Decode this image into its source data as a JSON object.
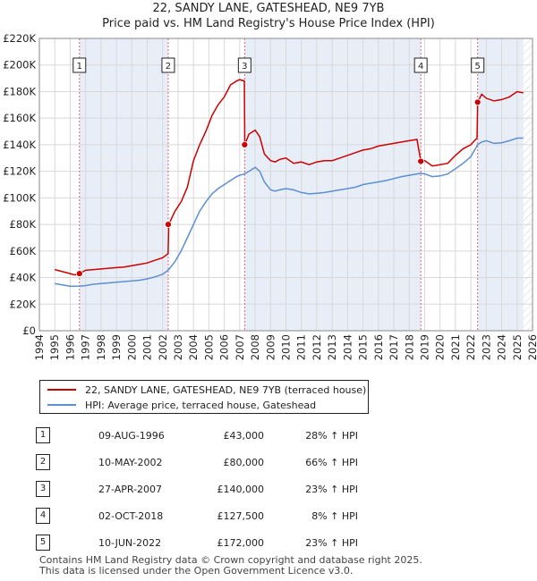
{
  "title_line1": "22, SANDY LANE, GATESHEAD, NE9 7YB",
  "title_line2": "Price paid vs. HM Land Registry's House Price Index (HPI)",
  "colors": {
    "property": "#cc0000",
    "hpi": "#5b8fd0",
    "shade": "#e8eef8",
    "marker_line": "#e06070"
  },
  "chart_data": {
    "type": "line",
    "title": "Price paid vs. HM Land Registry's House Price Index (HPI)",
    "xlim": [
      1994,
      2026
    ],
    "ylim": [
      0,
      220000
    ],
    "y_ticks": [
      0,
      20000,
      40000,
      60000,
      80000,
      100000,
      120000,
      140000,
      160000,
      180000,
      200000,
      220000
    ],
    "y_tick_labels": [
      "£0",
      "£20K",
      "£40K",
      "£60K",
      "£80K",
      "£100K",
      "£120K",
      "£140K",
      "£160K",
      "£180K",
      "£200K",
      "£220K"
    ],
    "x_ticks": [
      1994,
      1995,
      1996,
      1997,
      1998,
      1999,
      2000,
      2001,
      2002,
      2003,
      2004,
      2005,
      2006,
      2007,
      2008,
      2009,
      2010,
      2011,
      2012,
      2013,
      2014,
      2015,
      2016,
      2017,
      2018,
      2019,
      2020,
      2021,
      2022,
      2023,
      2024,
      2025,
      2026
    ],
    "x_tick_labels": [
      "1994",
      "1995",
      "1996",
      "1997",
      "1998",
      "1999",
      "2000",
      "2001",
      "2002",
      "2003",
      "2004",
      "2005",
      "2006",
      "2007",
      "2008",
      "2009",
      "2010",
      "2011",
      "2012",
      "2013",
      "2014",
      "2015",
      "2016",
      "2017",
      "2018",
      "2019",
      "2020",
      "2021",
      "2022",
      "2023",
      "2024",
      "2025",
      "2026"
    ],
    "series": [
      {
        "name": "22, SANDY LANE, GATESHEAD, NE9 7YB (terraced house)",
        "x": [
          1995.0,
          1995.5,
          1996.0,
          1996.3,
          1996.6,
          1997.0,
          1997.5,
          1998.0,
          1998.5,
          1999.0,
          1999.5,
          2000.0,
          2000.5,
          2001.0,
          2001.5,
          2002.0,
          2002.35,
          2002.4,
          2002.8,
          2003.2,
          2003.6,
          2004.0,
          2004.4,
          2004.8,
          2005.2,
          2005.6,
          2006.0,
          2006.4,
          2006.8,
          2007.0,
          2007.3,
          2007.33,
          2007.6,
          2008.0,
          2008.3,
          2008.6,
          2009.0,
          2009.3,
          2009.6,
          2010.0,
          2010.5,
          2011.0,
          2011.5,
          2012.0,
          2012.5,
          2013.0,
          2013.5,
          2014.0,
          2014.5,
          2015.0,
          2015.5,
          2016.0,
          2016.5,
          2017.0,
          2017.5,
          2018.0,
          2018.5,
          2018.75,
          2019.0,
          2019.5,
          2020.0,
          2020.5,
          2021.0,
          2021.5,
          2022.0,
          2022.4,
          2022.44,
          2022.7,
          2023.0,
          2023.5,
          2024.0,
          2024.5,
          2025.0,
          2025.4
        ],
        "values": [
          46000,
          44500,
          43000,
          42000,
          43000,
          45500,
          46000,
          46500,
          47000,
          47500,
          48000,
          49000,
          50000,
          51000,
          53000,
          55000,
          58000,
          80000,
          90000,
          97000,
          108000,
          128000,
          140000,
          150000,
          162000,
          170000,
          176000,
          185000,
          188000,
          189000,
          188000,
          140000,
          148000,
          151000,
          146000,
          133000,
          128000,
          127000,
          129000,
          130000,
          126000,
          127000,
          125000,
          127000,
          128000,
          128000,
          130000,
          132000,
          134000,
          136000,
          137000,
          139000,
          140000,
          141000,
          142000,
          143000,
          144000,
          127500,
          128000,
          124000,
          125000,
          126000,
          132000,
          137000,
          140000,
          145000,
          172000,
          178000,
          175000,
          173000,
          174000,
          176000,
          180000,
          179000
        ]
      },
      {
        "name": "HPI: Average price, terraced house, Gateshead",
        "x": [
          1995.0,
          1995.5,
          1996.0,
          1996.6,
          1997.0,
          1997.5,
          1998.0,
          1998.5,
          1999.0,
          1999.5,
          2000.0,
          2000.5,
          2001.0,
          2001.5,
          2002.0,
          2002.4,
          2002.8,
          2003.2,
          2003.6,
          2004.0,
          2004.4,
          2004.8,
          2005.2,
          2005.6,
          2006.0,
          2006.4,
          2006.8,
          2007.0,
          2007.3,
          2007.6,
          2008.0,
          2008.3,
          2008.6,
          2009.0,
          2009.3,
          2009.6,
          2010.0,
          2010.5,
          2011.0,
          2011.5,
          2012.0,
          2012.5,
          2013.0,
          2013.5,
          2014.0,
          2014.5,
          2015.0,
          2015.5,
          2016.0,
          2016.5,
          2017.0,
          2017.5,
          2018.0,
          2018.5,
          2018.75,
          2019.0,
          2019.5,
          2020.0,
          2020.5,
          2021.0,
          2021.5,
          2022.0,
          2022.44,
          2022.7,
          2023.0,
          2023.5,
          2024.0,
          2024.5,
          2025.0,
          2025.4
        ],
        "values": [
          35500,
          34500,
          33500,
          33600,
          34000,
          35000,
          35500,
          36000,
          36500,
          37000,
          37500,
          38000,
          39000,
          40500,
          42500,
          46000,
          52000,
          60000,
          70000,
          80000,
          90000,
          97000,
          103000,
          107000,
          110000,
          113000,
          116000,
          117000,
          118000,
          120000,
          123000,
          120000,
          112000,
          106000,
          105000,
          106000,
          107000,
          106000,
          104000,
          103000,
          103500,
          104000,
          105000,
          106000,
          107000,
          108000,
          110000,
          111000,
          112000,
          113000,
          114500,
          116000,
          117000,
          118000,
          118500,
          118000,
          116000,
          116500,
          118000,
          122000,
          126000,
          131000,
          140000,
          142000,
          143000,
          141000,
          141500,
          143000,
          145000,
          145000
        ]
      }
    ],
    "markers": [
      {
        "label": "1",
        "x": 1996.6,
        "y": 43000
      },
      {
        "label": "2",
        "x": 2002.36,
        "y": 80000
      },
      {
        "label": "3",
        "x": 2007.32,
        "y": 140000
      },
      {
        "label": "4",
        "x": 2018.75,
        "y": 127500
      },
      {
        "label": "5",
        "x": 2022.44,
        "y": 172000
      }
    ]
  },
  "legend": {
    "property_label": "22, SANDY LANE, GATESHEAD, NE9 7YB (terraced house)",
    "hpi_label": "HPI: Average price, terraced house, Gateshead"
  },
  "sales": [
    {
      "num": "1",
      "date": "09-AUG-1996",
      "price": "£43,000",
      "hpi": "28% ↑ HPI"
    },
    {
      "num": "2",
      "date": "10-MAY-2002",
      "price": "£80,000",
      "hpi": "66% ↑ HPI"
    },
    {
      "num": "3",
      "date": "27-APR-2007",
      "price": "£140,000",
      "hpi": "23% ↑ HPI"
    },
    {
      "num": "4",
      "date": "02-OCT-2018",
      "price": "£127,500",
      "hpi": "8% ↑ HPI"
    },
    {
      "num": "5",
      "date": "10-JUN-2022",
      "price": "£172,000",
      "hpi": "23% ↑ HPI"
    }
  ],
  "footer_line1": "Contains HM Land Registry data © Crown copyright and database right 2025.",
  "footer_line2": "This data is licensed under the Open Government Licence v3.0."
}
